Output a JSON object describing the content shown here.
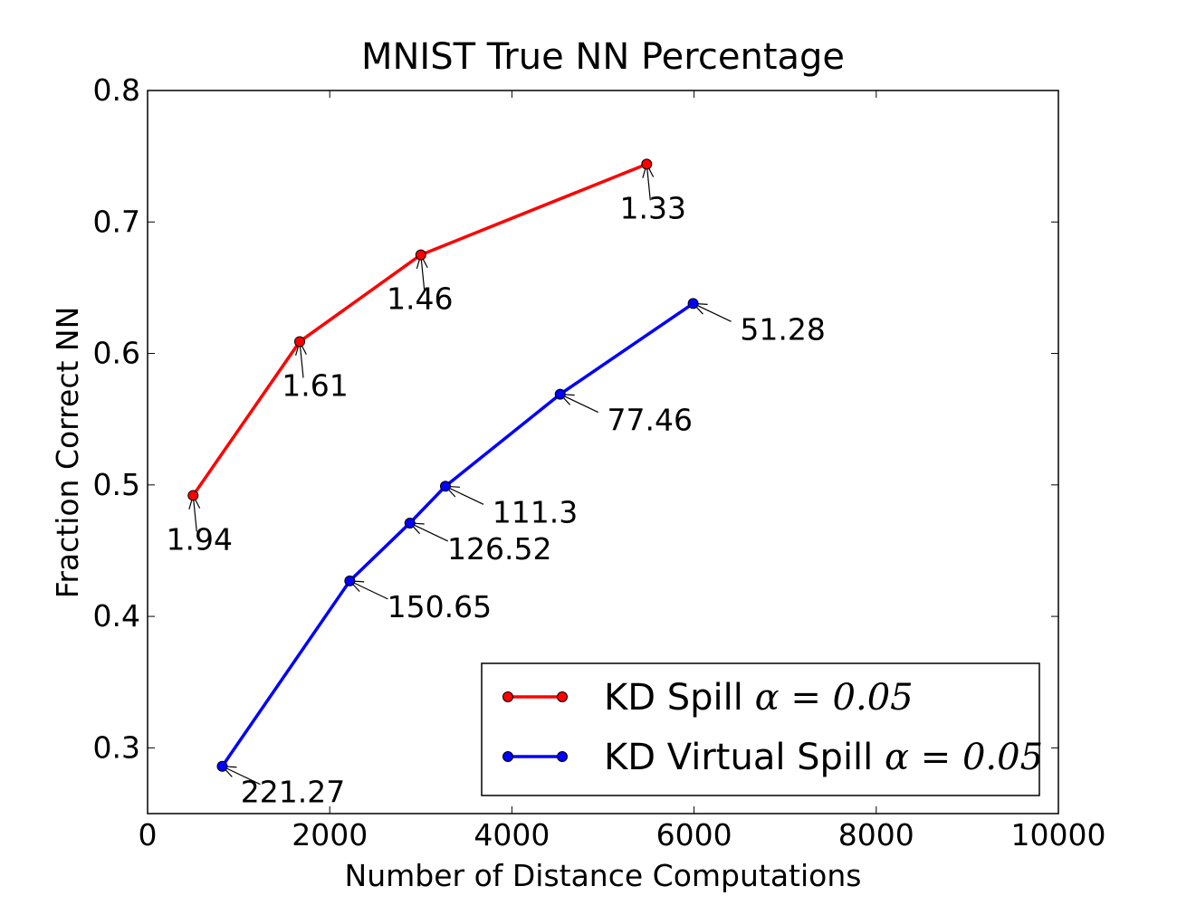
{
  "chart_data": {
    "type": "line",
    "title": "MNIST True NN Percentage",
    "xlabel": "Number of Distance Computations",
    "ylabel": "Fraction Correct NN",
    "xlim": [
      0,
      10000
    ],
    "ylim": [
      0.25,
      0.8
    ],
    "xticks": [
      0,
      2000,
      4000,
      6000,
      8000,
      10000
    ],
    "yticks": [
      0.3,
      0.4,
      0.5,
      0.6,
      0.7,
      0.8
    ],
    "xtick_labels": [
      "0",
      "2000",
      "4000",
      "6000",
      "8000",
      "10000"
    ],
    "ytick_labels": [
      "0.3",
      "0.4",
      "0.5",
      "0.6",
      "0.7",
      "0.8"
    ],
    "grid": false,
    "legend_position": "lower-right",
    "series": [
      {
        "name": "KD Spill",
        "legend_math": "α = 0.05",
        "color": "#ff0000",
        "x": [
          500,
          1670,
          3000,
          5480
        ],
        "y": [
          0.492,
          0.609,
          0.675,
          0.744
        ],
        "annotations": [
          "1.94",
          "1.61",
          "1.46",
          "1.33"
        ]
      },
      {
        "name": "KD Virtual Spill",
        "legend_math": "α = 0.05",
        "color": "#0000ff",
        "x": [
          820,
          2220,
          2880,
          3270,
          4530,
          5990
        ],
        "y": [
          0.286,
          0.427,
          0.471,
          0.499,
          0.569,
          0.638
        ],
        "annotations": [
          "221.27",
          "150.65",
          "126.52",
          "111.3",
          "77.46",
          "51.28"
        ]
      }
    ]
  }
}
